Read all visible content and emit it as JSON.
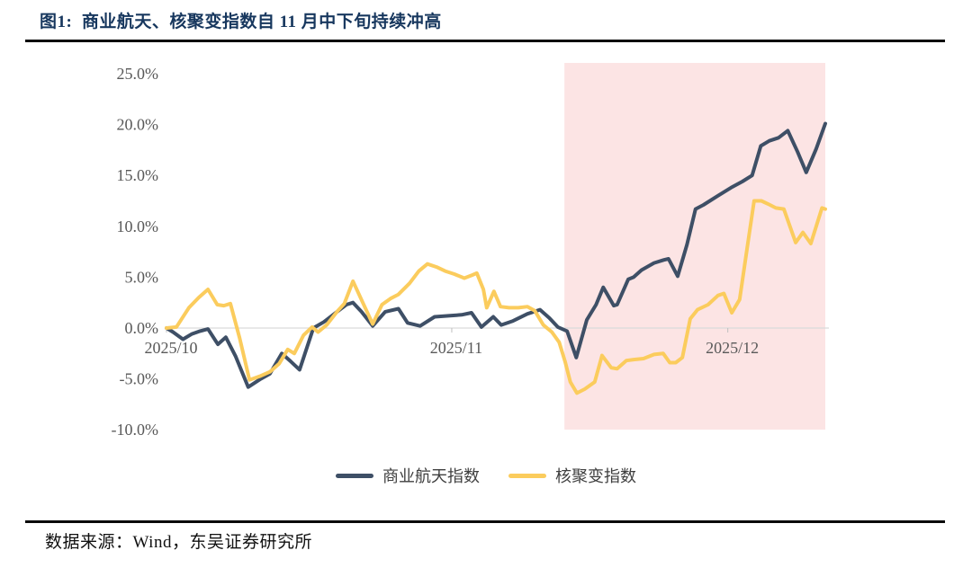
{
  "figure": {
    "title": "图1:  商业航天、核聚变指数自 11 月中下旬持续冲高",
    "source": "数据来源：Wind，东吴证券研究所"
  },
  "chart_data": {
    "type": "line",
    "title": "商业航天、核聚变指数自11月中下旬持续冲高",
    "unit": "%",
    "grid": "zero-line-only",
    "legend_position": "bottom",
    "colors": {
      "navy_line": "#3E4F66",
      "yellow_line": "#FBCC5D",
      "highlight_pink": "#FCE4E4",
      "zero_line": "#D9D9D9",
      "tick_mark": "#BFBFBF",
      "axis_label": "#595959",
      "title_navy": "#17375E"
    },
    "y_axis": {
      "max": 25,
      "min": -10,
      "step": 5,
      "tick_labels": [
        "25.0%",
        "20.0%",
        "15.0%",
        "10.0%",
        "5.0%",
        "0.0%",
        "-5.0%",
        "-10.0%"
      ]
    },
    "x_axis": {
      "tick_labels": [
        "2025/10",
        "2025/11",
        "2025/12"
      ],
      "tick_positions": [
        0.0,
        0.433,
        0.852
      ]
    },
    "highlight_region": {
      "x_start": 0.604,
      "x_end": 1.0
    },
    "series": [
      {
        "name": "商业航天指数",
        "color": "#3E4F66",
        "points": [
          [
            0.0,
            0.0
          ],
          [
            0.01,
            -0.4
          ],
          [
            0.025,
            -1.1
          ],
          [
            0.038,
            -0.6
          ],
          [
            0.051,
            -0.3
          ],
          [
            0.063,
            -0.1
          ],
          [
            0.078,
            -1.6
          ],
          [
            0.09,
            -0.9
          ],
          [
            0.105,
            -2.8
          ],
          [
            0.124,
            -5.8
          ],
          [
            0.143,
            -5.0
          ],
          [
            0.157,
            -4.5
          ],
          [
            0.175,
            -2.5
          ],
          [
            0.189,
            -3.3
          ],
          [
            0.202,
            -4.1
          ],
          [
            0.223,
            0.0
          ],
          [
            0.239,
            0.6
          ],
          [
            0.257,
            1.5
          ],
          [
            0.273,
            2.3
          ],
          [
            0.283,
            2.5
          ],
          [
            0.296,
            1.6
          ],
          [
            0.313,
            0.2
          ],
          [
            0.332,
            1.6
          ],
          [
            0.352,
            1.9
          ],
          [
            0.366,
            0.5
          ],
          [
            0.385,
            0.2
          ],
          [
            0.407,
            1.1
          ],
          [
            0.428,
            1.2
          ],
          [
            0.448,
            1.3
          ],
          [
            0.463,
            1.5
          ],
          [
            0.478,
            0.1
          ],
          [
            0.496,
            1.1
          ],
          [
            0.508,
            0.3
          ],
          [
            0.526,
            0.7
          ],
          [
            0.548,
            1.4
          ],
          [
            0.567,
            1.8
          ],
          [
            0.581,
            1.0
          ],
          [
            0.594,
            0.1
          ],
          [
            0.608,
            -0.3
          ],
          [
            0.622,
            -2.9
          ],
          [
            0.638,
            0.8
          ],
          [
            0.652,
            2.3
          ],
          [
            0.663,
            4.0
          ],
          [
            0.679,
            2.2
          ],
          [
            0.684,
            2.3
          ],
          [
            0.701,
            4.8
          ],
          [
            0.709,
            5.0
          ],
          [
            0.721,
            5.7
          ],
          [
            0.74,
            6.4
          ],
          [
            0.755,
            6.7
          ],
          [
            0.762,
            6.8
          ],
          [
            0.776,
            5.1
          ],
          [
            0.79,
            8.2
          ],
          [
            0.803,
            11.7
          ],
          [
            0.815,
            12.1
          ],
          [
            0.837,
            13.0
          ],
          [
            0.857,
            13.8
          ],
          [
            0.874,
            14.4
          ],
          [
            0.889,
            15.0
          ],
          [
            0.902,
            17.9
          ],
          [
            0.915,
            18.4
          ],
          [
            0.929,
            18.7
          ],
          [
            0.943,
            19.4
          ],
          [
            0.958,
            17.3
          ],
          [
            0.971,
            15.3
          ],
          [
            0.986,
            17.6
          ],
          [
            1.0,
            20.1
          ]
        ]
      },
      {
        "name": "核聚变指数",
        "color": "#FBCC5D",
        "points": [
          [
            0.0,
            0.0
          ],
          [
            0.015,
            0.1
          ],
          [
            0.034,
            2.0
          ],
          [
            0.049,
            3.0
          ],
          [
            0.063,
            3.8
          ],
          [
            0.077,
            2.3
          ],
          [
            0.087,
            2.2
          ],
          [
            0.097,
            2.4
          ],
          [
            0.111,
            -1.0
          ],
          [
            0.126,
            -5.1
          ],
          [
            0.143,
            -4.7
          ],
          [
            0.157,
            -4.3
          ],
          [
            0.171,
            -3.5
          ],
          [
            0.184,
            -2.1
          ],
          [
            0.194,
            -2.5
          ],
          [
            0.208,
            -0.7
          ],
          [
            0.221,
            0.1
          ],
          [
            0.23,
            -0.4
          ],
          [
            0.243,
            0.3
          ],
          [
            0.26,
            1.7
          ],
          [
            0.27,
            2.4
          ],
          [
            0.283,
            4.6
          ],
          [
            0.298,
            2.5
          ],
          [
            0.313,
            0.4
          ],
          [
            0.327,
            2.3
          ],
          [
            0.34,
            2.9
          ],
          [
            0.352,
            3.3
          ],
          [
            0.369,
            4.4
          ],
          [
            0.383,
            5.6
          ],
          [
            0.396,
            6.3
          ],
          [
            0.41,
            6.0
          ],
          [
            0.423,
            5.6
          ],
          [
            0.437,
            5.3
          ],
          [
            0.452,
            4.9
          ],
          [
            0.464,
            5.2
          ],
          [
            0.471,
            5.4
          ],
          [
            0.481,
            3.8
          ],
          [
            0.486,
            2.0
          ],
          [
            0.497,
            3.6
          ],
          [
            0.507,
            2.1
          ],
          [
            0.52,
            2.0
          ],
          [
            0.534,
            2.0
          ],
          [
            0.548,
            2.1
          ],
          [
            0.559,
            1.7
          ],
          [
            0.572,
            0.3
          ],
          [
            0.585,
            -0.4
          ],
          [
            0.596,
            -1.4
          ],
          [
            0.605,
            -3.3
          ],
          [
            0.613,
            -5.3
          ],
          [
            0.623,
            -6.4
          ],
          [
            0.635,
            -6.0
          ],
          [
            0.65,
            -5.3
          ],
          [
            0.661,
            -2.7
          ],
          [
            0.675,
            -3.9
          ],
          [
            0.684,
            -4.0
          ],
          [
            0.698,
            -3.2
          ],
          [
            0.709,
            -3.1
          ],
          [
            0.724,
            -3.0
          ],
          [
            0.74,
            -2.6
          ],
          [
            0.754,
            -2.5
          ],
          [
            0.764,
            -3.4
          ],
          [
            0.773,
            -3.4
          ],
          [
            0.783,
            -2.9
          ],
          [
            0.795,
            0.9
          ],
          [
            0.806,
            1.8
          ],
          [
            0.822,
            2.3
          ],
          [
            0.837,
            3.2
          ],
          [
            0.846,
            3.4
          ],
          [
            0.858,
            1.5
          ],
          [
            0.87,
            2.8
          ],
          [
            0.881,
            7.7
          ],
          [
            0.892,
            12.5
          ],
          [
            0.903,
            12.5
          ],
          [
            0.913,
            12.2
          ],
          [
            0.925,
            11.8
          ],
          [
            0.937,
            11.7
          ],
          [
            0.955,
            8.4
          ],
          [
            0.966,
            9.4
          ],
          [
            0.978,
            8.3
          ],
          [
            0.995,
            11.8
          ],
          [
            1.0,
            11.7
          ]
        ]
      }
    ]
  }
}
